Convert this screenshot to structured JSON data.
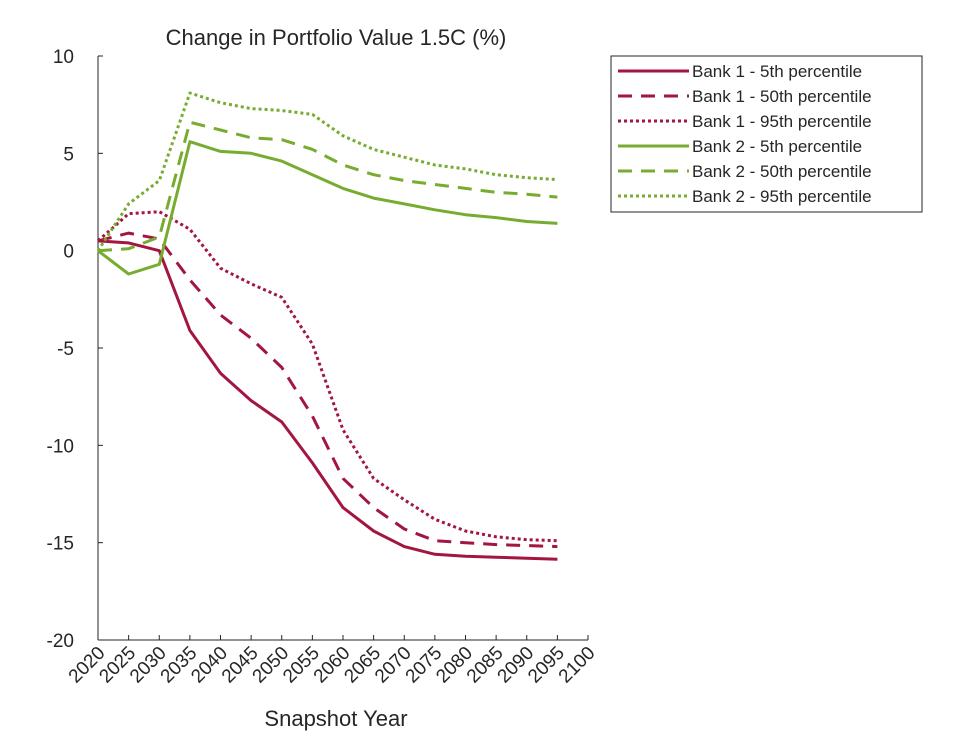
{
  "chart_data": {
    "type": "line",
    "title": "Change in Portfolio Value 1.5C (%)",
    "xlabel": "Snapshot Year",
    "ylabel": "",
    "xlim": [
      2020,
      2100
    ],
    "ylim": [
      -20,
      10
    ],
    "grid": false,
    "legend_position": "outside-top-right",
    "x": [
      2020,
      2025,
      2030,
      2035,
      2040,
      2045,
      2050,
      2055,
      2060,
      2065,
      2070,
      2075,
      2080,
      2085,
      2090,
      2095
    ],
    "x_ticks": [
      "2020",
      "2025",
      "2030",
      "2035",
      "2040",
      "2045",
      "2050",
      "2055",
      "2060",
      "2065",
      "2070",
      "2075",
      "2080",
      "2085",
      "2090",
      "2095",
      "2100"
    ],
    "y_ticks": [
      "10",
      "5",
      "0",
      "-5",
      "-10",
      "-15",
      "-20"
    ],
    "colors": {
      "bank1": "#a2163f",
      "bank2": "#77ac30"
    },
    "series": [
      {
        "name": "Bank 1 - 5th percentile",
        "color": "#a2163f",
        "dash": "solid",
        "values": [
          0.5,
          0.4,
          0.0,
          -4.1,
          -6.3,
          -7.7,
          -8.8,
          -10.9,
          -13.2,
          -14.4,
          -15.2,
          -15.6,
          -15.7,
          -15.75,
          -15.8,
          -15.85
        ]
      },
      {
        "name": "Bank 1 - 50th percentile",
        "color": "#a2163f",
        "dash": "dashed",
        "values": [
          0.5,
          0.9,
          0.6,
          -1.5,
          -3.3,
          -4.5,
          -6.0,
          -8.5,
          -11.7,
          -13.2,
          -14.3,
          -14.9,
          -15.0,
          -15.1,
          -15.15,
          -15.2
        ]
      },
      {
        "name": "Bank 1 - 95th percentile",
        "color": "#a2163f",
        "dash": "dotted",
        "values": [
          0.5,
          1.9,
          2.0,
          1.1,
          -0.9,
          -1.7,
          -2.4,
          -4.8,
          -9.2,
          -11.7,
          -12.8,
          -13.8,
          -14.4,
          -14.7,
          -14.85,
          -14.9
        ]
      },
      {
        "name": "Bank 2 - 5th percentile",
        "color": "#77ac30",
        "dash": "solid",
        "values": [
          0.0,
          -1.2,
          -0.7,
          5.6,
          5.1,
          5.0,
          4.6,
          3.9,
          3.2,
          2.7,
          2.4,
          2.1,
          1.85,
          1.7,
          1.5,
          1.4
        ]
      },
      {
        "name": "Bank 2 - 50th percentile",
        "color": "#77ac30",
        "dash": "dashed",
        "values": [
          0.0,
          0.1,
          0.7,
          6.6,
          6.2,
          5.8,
          5.7,
          5.2,
          4.4,
          3.9,
          3.6,
          3.4,
          3.2,
          3.0,
          2.9,
          2.75
        ]
      },
      {
        "name": "Bank 2 - 95th percentile",
        "color": "#77ac30",
        "dash": "dotted",
        "values": [
          0.0,
          2.4,
          3.6,
          8.1,
          7.6,
          7.3,
          7.2,
          7.0,
          5.9,
          5.2,
          4.8,
          4.4,
          4.2,
          3.9,
          3.75,
          3.65
        ]
      }
    ]
  }
}
